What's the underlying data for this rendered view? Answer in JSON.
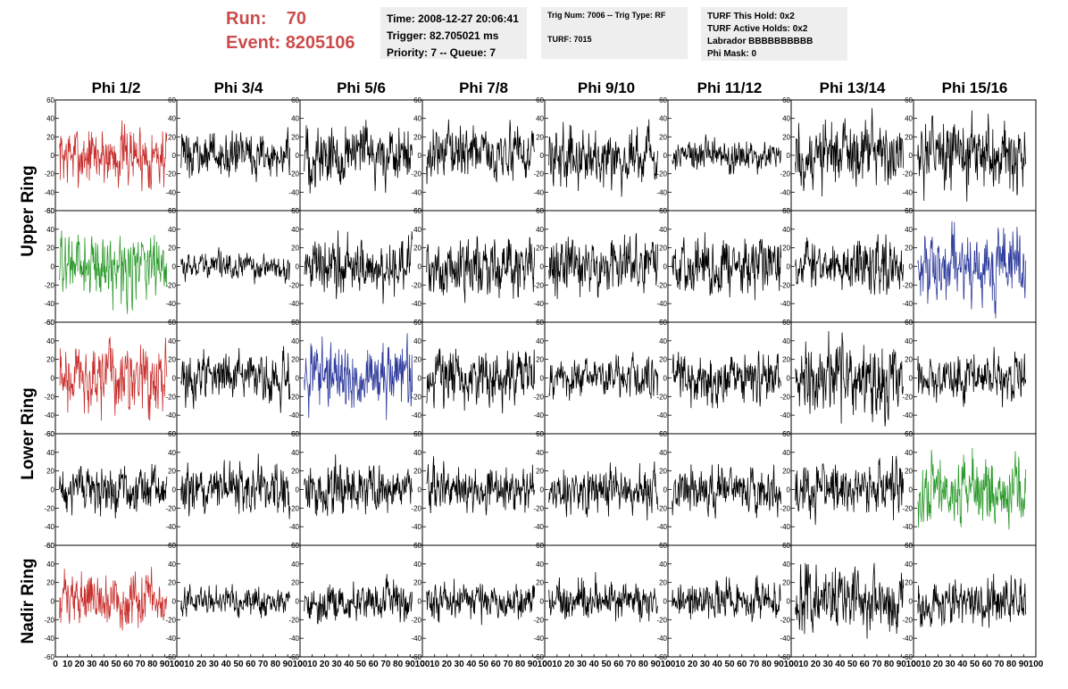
{
  "header": {
    "run_label": "Run:",
    "run_value": "70",
    "event_label": "Event:",
    "event_value": "8205106",
    "time_line": "Time: 2008-12-27 20:06:41",
    "trigger_line": "Trigger: 82.705021 ms",
    "priority_line": "Priority: 7 -- Queue: 7",
    "trig_line": "Trig Num: 7006 -- Trig Type: RF",
    "turf_line": "TURF: 7015",
    "turf_hold_line": "TURF This Hold: 0x2",
    "turf_active_line": "TURF Active Holds: 0x2",
    "labrador_line": "Labrador BBBBBBBBBB",
    "phi_mask_line": "Phi Mask: 0"
  },
  "colors": {
    "red": "#c8302e",
    "green": "#2a9a2a",
    "blue": "#2d3a9c",
    "black": "#000000",
    "header_text": "#cc4c4c",
    "box_bg": "#eeeeee"
  },
  "chart_data": {
    "type": "line",
    "layout": "grid 5 rows x 8 columns of waveform panels",
    "columns": [
      "Phi 1/2",
      "Phi 3/4",
      "Phi 5/6",
      "Phi 7/8",
      "Phi 9/10",
      "Phi 11/12",
      "Phi 13/14",
      "Phi 15/16"
    ],
    "rows": [
      "Upper Ring",
      "Lower Ring",
      "Nadir Ring"
    ],
    "panel_rows": 5,
    "row_labels_spans": [
      [
        0,
        1
      ],
      [
        2,
        3
      ],
      [
        4,
        4
      ]
    ],
    "ylim": [
      -60,
      60
    ],
    "yticks": [
      -60,
      -40,
      -20,
      0,
      20,
      40,
      60
    ],
    "xlim": [
      0,
      100
    ],
    "xticks": [
      0,
      10,
      20,
      30,
      40,
      50,
      60,
      70,
      80,
      90,
      100
    ],
    "samples_per_trace": 260,
    "panels": [
      {
        "row": 0,
        "col": 0,
        "color": "red",
        "amp": 22
      },
      {
        "row": 0,
        "col": 1,
        "color": "black",
        "amp": 15
      },
      {
        "row": 0,
        "col": 2,
        "color": "black",
        "amp": 22
      },
      {
        "row": 0,
        "col": 3,
        "color": "black",
        "amp": 18
      },
      {
        "row": 0,
        "col": 4,
        "color": "black",
        "amp": 20
      },
      {
        "row": 0,
        "col": 5,
        "color": "black",
        "amp": 12
      },
      {
        "row": 0,
        "col": 6,
        "color": "black",
        "amp": 24
      },
      {
        "row": 0,
        "col": 7,
        "color": "black",
        "amp": 24
      },
      {
        "row": 1,
        "col": 0,
        "color": "green",
        "amp": 22
      },
      {
        "row": 1,
        "col": 1,
        "color": "black",
        "amp": 9
      },
      {
        "row": 1,
        "col": 2,
        "color": "black",
        "amp": 20
      },
      {
        "row": 1,
        "col": 3,
        "color": "black",
        "amp": 20
      },
      {
        "row": 1,
        "col": 4,
        "color": "black",
        "amp": 20
      },
      {
        "row": 1,
        "col": 5,
        "color": "black",
        "amp": 20
      },
      {
        "row": 1,
        "col": 6,
        "color": "black",
        "amp": 18
      },
      {
        "row": 1,
        "col": 7,
        "color": "blue",
        "amp": 24
      },
      {
        "row": 2,
        "col": 0,
        "color": "red",
        "amp": 24
      },
      {
        "row": 2,
        "col": 1,
        "color": "black",
        "amp": 16
      },
      {
        "row": 2,
        "col": 2,
        "color": "blue",
        "amp": 22
      },
      {
        "row": 2,
        "col": 3,
        "color": "black",
        "amp": 20
      },
      {
        "row": 2,
        "col": 4,
        "color": "black",
        "amp": 14
      },
      {
        "row": 2,
        "col": 5,
        "color": "black",
        "amp": 18
      },
      {
        "row": 2,
        "col": 6,
        "color": "black",
        "amp": 26
      },
      {
        "row": 2,
        "col": 7,
        "color": "black",
        "amp": 16
      },
      {
        "row": 3,
        "col": 0,
        "color": "black",
        "amp": 16
      },
      {
        "row": 3,
        "col": 1,
        "color": "black",
        "amp": 18
      },
      {
        "row": 3,
        "col": 2,
        "color": "black",
        "amp": 18
      },
      {
        "row": 3,
        "col": 3,
        "color": "black",
        "amp": 16
      },
      {
        "row": 3,
        "col": 4,
        "color": "black",
        "amp": 16
      },
      {
        "row": 3,
        "col": 5,
        "color": "black",
        "amp": 16
      },
      {
        "row": 3,
        "col": 6,
        "color": "black",
        "amp": 18
      },
      {
        "row": 3,
        "col": 7,
        "color": "green",
        "amp": 24
      },
      {
        "row": 4,
        "col": 0,
        "color": "red",
        "amp": 18
      },
      {
        "row": 4,
        "col": 1,
        "color": "black",
        "amp": 10
      },
      {
        "row": 4,
        "col": 2,
        "color": "black",
        "amp": 14
      },
      {
        "row": 4,
        "col": 3,
        "color": "black",
        "amp": 14
      },
      {
        "row": 4,
        "col": 4,
        "color": "black",
        "amp": 14
      },
      {
        "row": 4,
        "col": 5,
        "color": "black",
        "amp": 14
      },
      {
        "row": 4,
        "col": 6,
        "color": "black",
        "amp": 22
      },
      {
        "row": 4,
        "col": 7,
        "color": "black",
        "amp": 16
      }
    ]
  }
}
